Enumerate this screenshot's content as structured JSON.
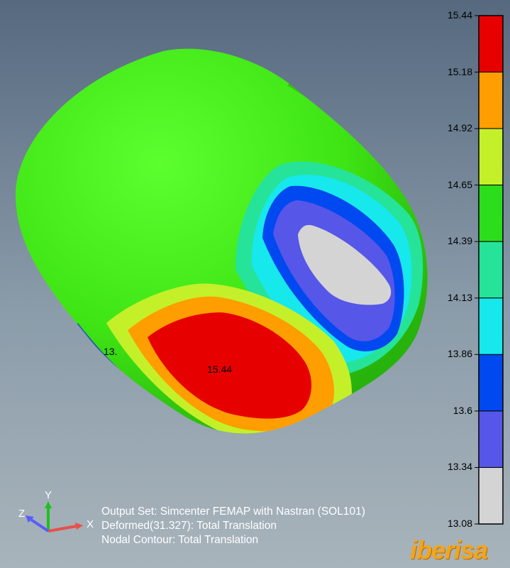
{
  "legend": {
    "levels": [
      "15.44",
      "15.18",
      "14.92",
      "14.65",
      "14.39",
      "14.13",
      "13.86",
      "13.6",
      "13.34",
      "13.08"
    ],
    "colors": [
      "#e60000",
      "#ff9e00",
      "#c4f02a",
      "#2cdd1c",
      "#26e39a",
      "#16e8ec",
      "#0048f0",
      "#5656e8",
      "#d4d4d4"
    ]
  },
  "model": {
    "max_label": "15.44",
    "min_label": "13.",
    "body_color": "#3fe414",
    "shadow_color": "#1fa20e",
    "edge_color": "#1b45d6"
  },
  "info": {
    "line1": "Output Set: Simcenter FEMAP with Nastran (SOL101)",
    "line2": "Deformed(31.327): Total Translation",
    "line3": "Nodal Contour: Total Translation"
  },
  "triad": {
    "x": "X",
    "y": "Y",
    "z": "Z"
  },
  "brand": "iberisa"
}
